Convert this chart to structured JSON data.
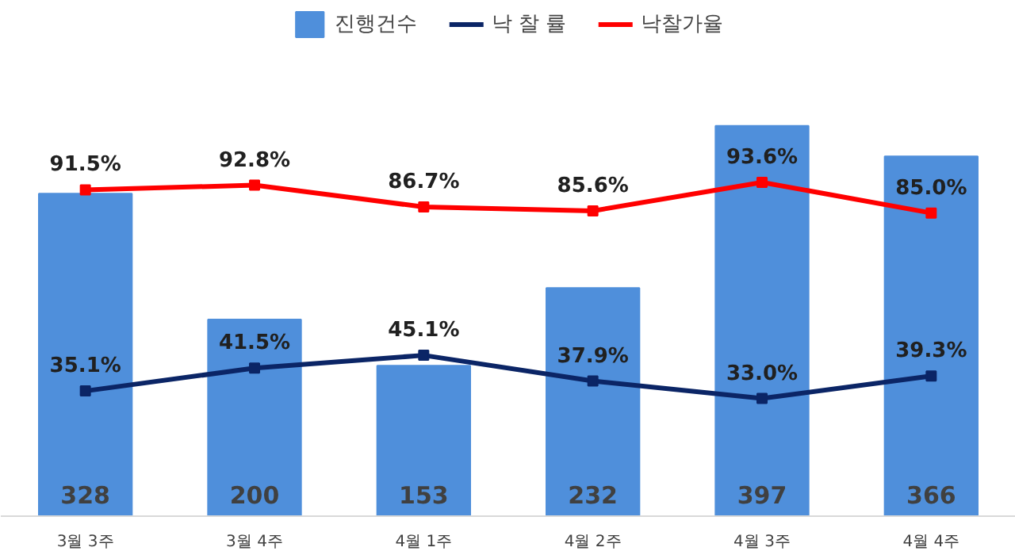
{
  "chart_data": {
    "type": "bar",
    "categories": [
      "3월 3주",
      "3월 4주",
      "4월 1주",
      "4월 2주",
      "4월 3주",
      "4월 4주"
    ],
    "legend": "top",
    "marker": "square",
    "series": [
      {
        "name": "진행건수",
        "color": "#4f8fdb",
        "values": [
          328,
          200,
          153,
          232,
          397,
          366
        ],
        "value_labels": [
          "328",
          "200",
          "153",
          "232",
          "397",
          "366"
        ]
      },
      {
        "name": "낙 찰 률",
        "type": "line",
        "axis": "y2",
        "color": "#0b2566",
        "values": [
          35.1,
          41.5,
          45.1,
          37.9,
          33.0,
          39.3
        ],
        "value_labels": [
          "35.1%",
          "41.5%",
          "45.1%",
          "37.9%",
          "33.0%",
          "39.3%"
        ]
      },
      {
        "name": "낙찰가율",
        "type": "line",
        "axis": "y2",
        "color": "#ff0000",
        "values": [
          91.5,
          92.8,
          86.7,
          85.6,
          93.6,
          85.0
        ],
        "value_labels": [
          "91.5%",
          "92.8%",
          "86.7%",
          "85.6%",
          "93.6%",
          "85.0%"
        ]
      }
    ]
  }
}
